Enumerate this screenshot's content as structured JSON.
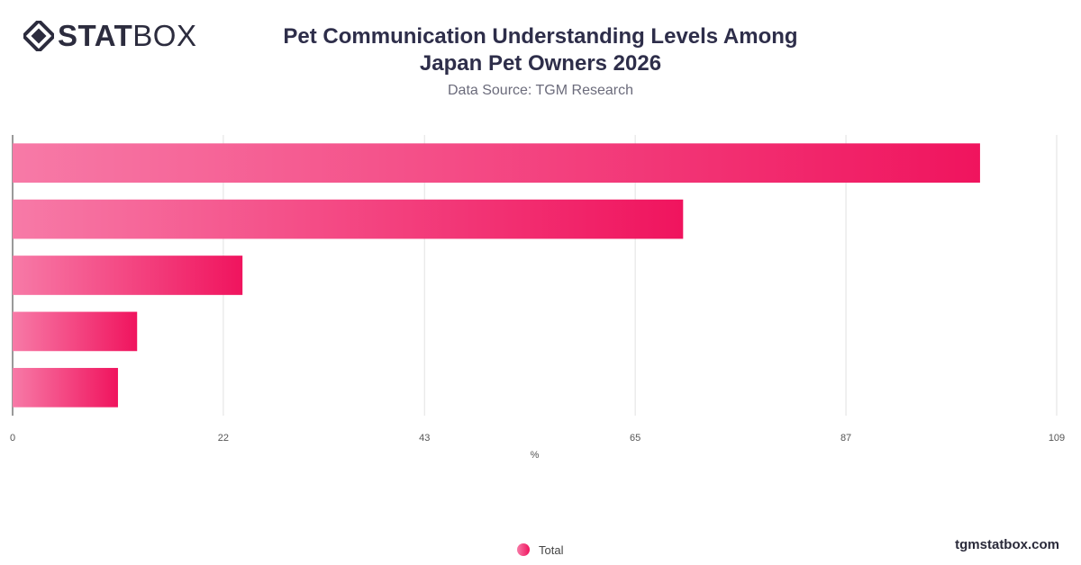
{
  "brand": {
    "logo_bold": "STAT",
    "logo_light": "BOX",
    "icon": "diamond-logo-icon"
  },
  "header": {
    "title_line1": "Pet Communication Understanding Levels Among",
    "title_line2": "Japan Pet Owners 2026",
    "subtitle": "Data Source: TGM Research"
  },
  "chart_data": {
    "type": "bar",
    "orientation": "horizontal",
    "categories": [
      "",
      "",
      "",
      "",
      ""
    ],
    "series": [
      {
        "name": "Total",
        "values": [
          101,
          70,
          24,
          13,
          11
        ]
      }
    ],
    "xlabel": "%",
    "xlim": [
      0,
      109
    ],
    "xticks": [
      "0",
      "22",
      "43",
      "65",
      "87",
      "109"
    ],
    "grid": true,
    "legend": "bottom-center",
    "bar_gradient": [
      "#f77aa7",
      "#f0145e"
    ]
  },
  "legend": {
    "label": "Total"
  },
  "footer": {
    "site": "tgmstatbox.com"
  }
}
